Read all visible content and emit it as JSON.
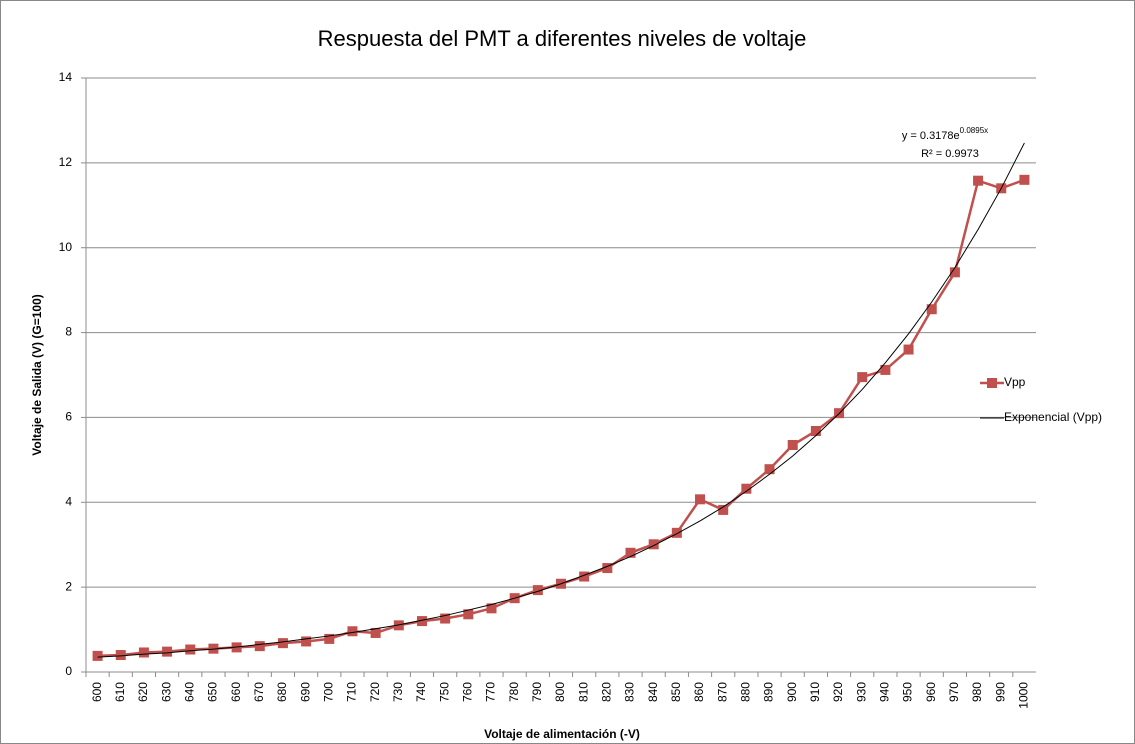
{
  "chart_data": {
    "type": "line",
    "title": "Respuesta del PMT a diferentes niveles de voltaje",
    "xlabel": "Voltaje de alimentación (-V)",
    "ylabel": "Voltaje de Salida (V) (G=100)",
    "categories": [
      "600",
      "610",
      "620",
      "630",
      "640",
      "650",
      "660",
      "670",
      "680",
      "690",
      "700",
      "710",
      "720",
      "730",
      "740",
      "750",
      "760",
      "770",
      "780",
      "790",
      "800",
      "810",
      "820",
      "830",
      "840",
      "850",
      "860",
      "870",
      "880",
      "890",
      "900",
      "910",
      "920",
      "930",
      "940",
      "950",
      "960",
      "970",
      "980",
      "990",
      "1000"
    ],
    "series": [
      {
        "name": "Vpp",
        "color": "#c0504d",
        "marker": "square",
        "values": [
          0.38,
          0.4,
          0.46,
          0.48,
          0.53,
          0.55,
          0.58,
          0.61,
          0.68,
          0.72,
          0.78,
          0.96,
          0.92,
          1.1,
          1.2,
          1.26,
          1.36,
          1.5,
          1.74,
          1.93,
          2.08,
          2.25,
          2.45,
          2.81,
          3.01,
          3.28,
          4.07,
          3.82,
          4.32,
          4.78,
          5.35,
          5.68,
          6.1,
          6.95,
          7.12,
          7.6,
          8.55,
          9.42,
          11.58,
          11.4,
          11.6
        ]
      },
      {
        "name": "Exponencial (Vpp)",
        "color": "#000000",
        "marker": "none",
        "values": [
          0.35,
          0.38,
          0.42,
          0.45,
          0.5,
          0.54,
          0.59,
          0.65,
          0.71,
          0.78,
          0.85,
          0.93,
          1.02,
          1.11,
          1.22,
          1.33,
          1.46,
          1.59,
          1.74,
          1.9,
          2.08,
          2.28,
          2.49,
          2.72,
          2.98,
          3.26,
          3.56,
          3.89,
          4.26,
          4.66,
          5.09,
          5.57,
          6.09,
          6.66,
          7.29,
          7.97,
          8.72,
          9.53,
          10.43,
          11.4,
          12.47
        ]
      }
    ],
    "equation": {
      "base": "y = 0.3178e",
      "exponent": "0.0895x"
    },
    "r2": "R² = 0.9973",
    "ylim": [
      0,
      14
    ],
    "yticks": [
      0,
      2,
      4,
      6,
      8,
      10,
      12,
      14
    ],
    "grid": true,
    "legend": "right"
  }
}
